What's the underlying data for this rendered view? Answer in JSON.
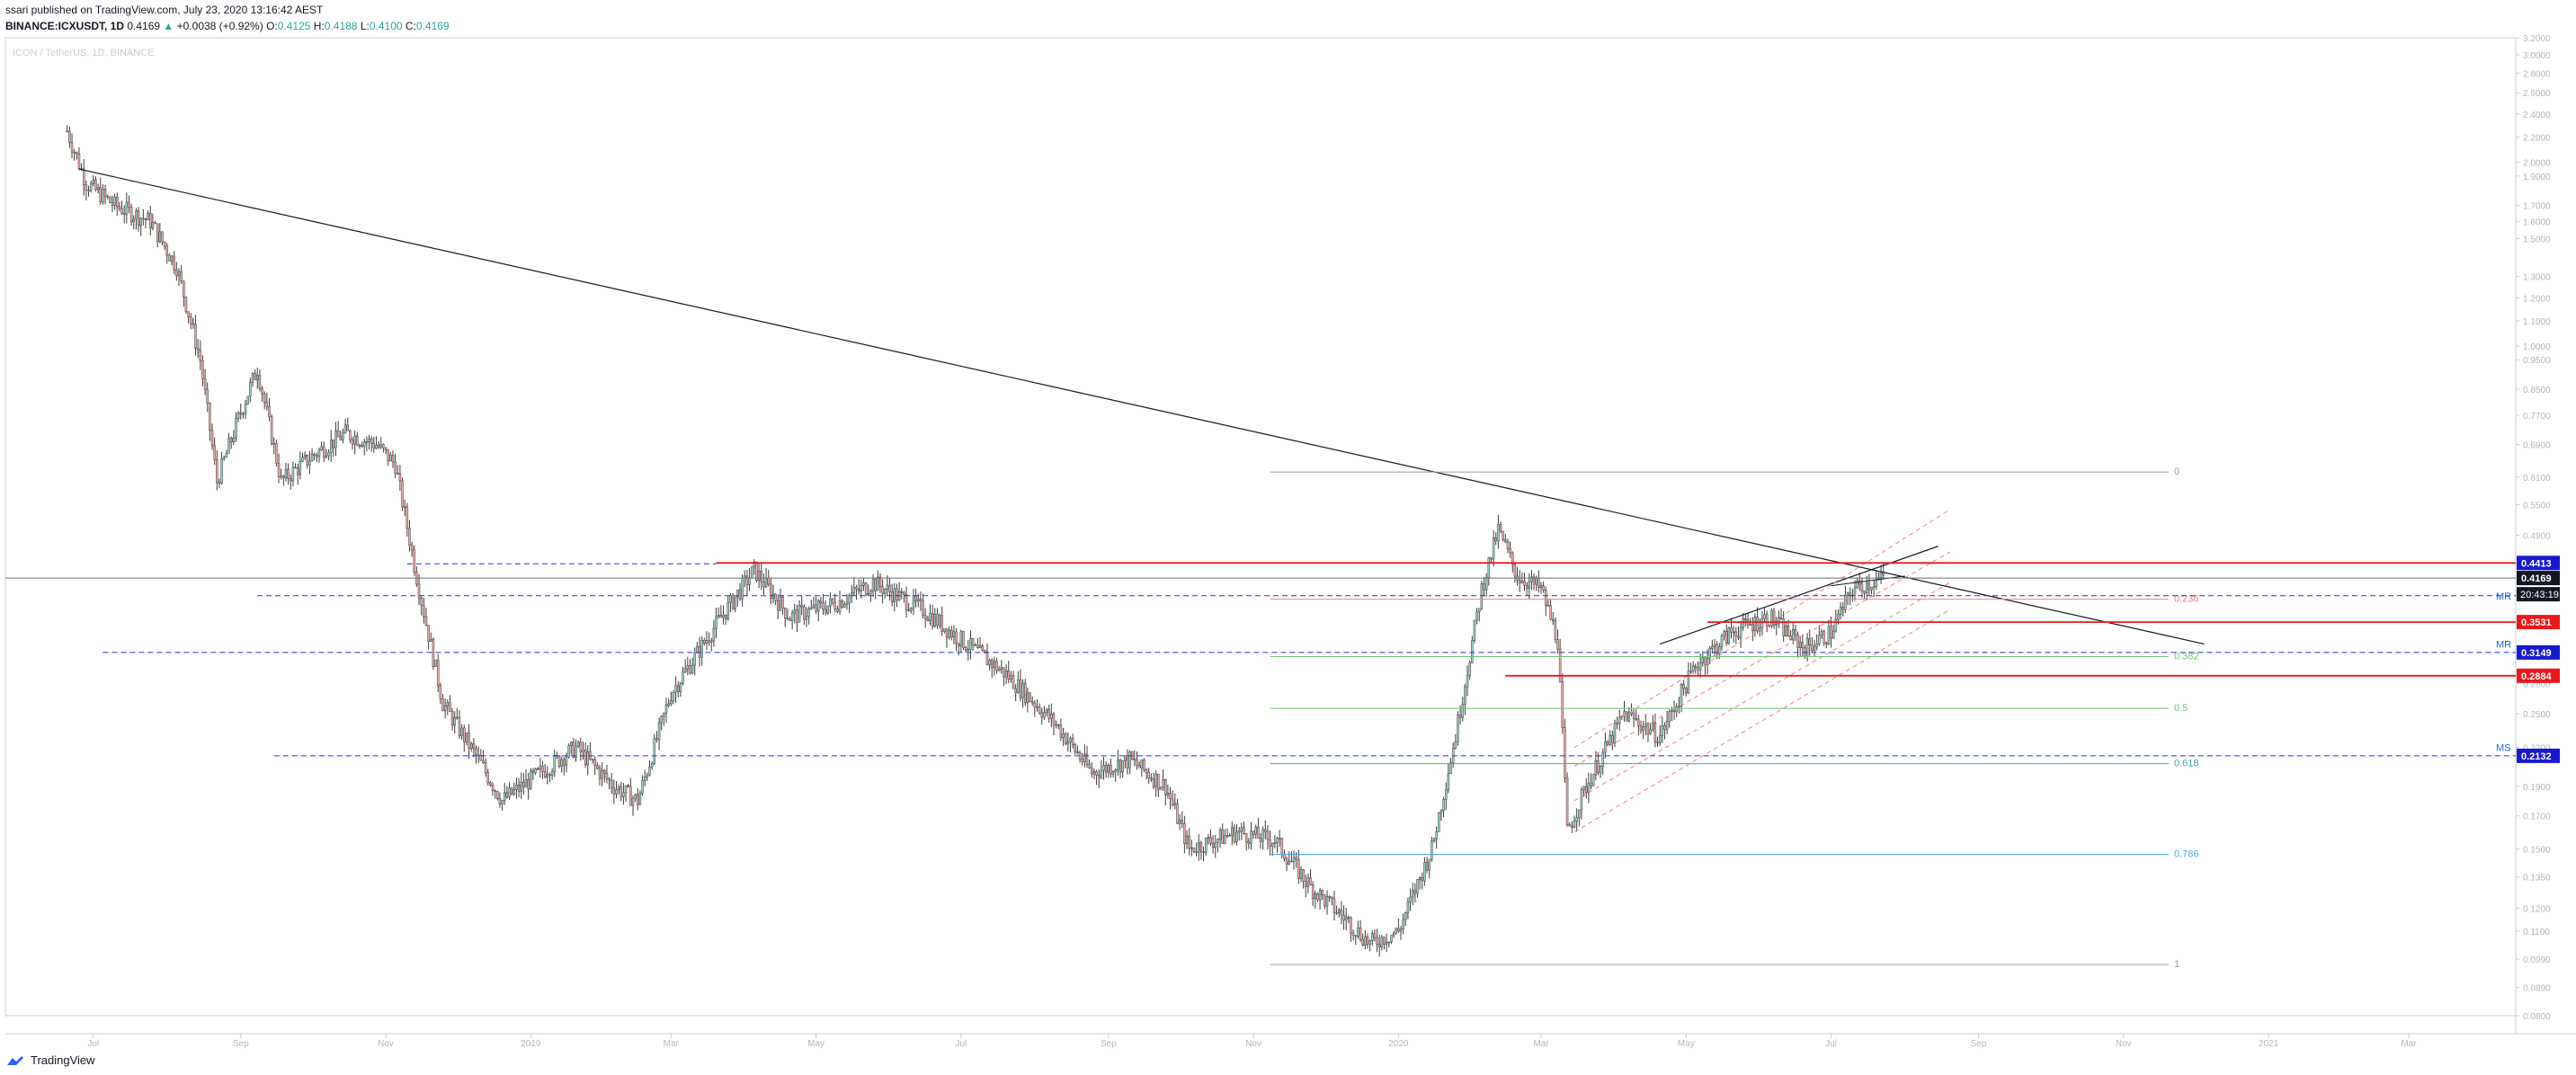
{
  "header": {
    "publisher_line": "ssari published on TradingView.com, July 23, 2020 13:16:42 AEST",
    "symbol": "BINANCE:ICXUSDT, 1D",
    "price": "0.4169",
    "arrow": "▲",
    "change": "+0.0038 (+0.92%)",
    "o_label": "O:",
    "o_value": "0.4125",
    "h_label": "H:",
    "h_value": "0.4188",
    "l_label": "L:",
    "l_value": "0.4100",
    "c_label": "C:",
    "c_value": "0.4169"
  },
  "watermark": "ICON / TetherUS, 1D, BINANCE",
  "footer": {
    "brand": "TradingView"
  },
  "colors": {
    "up": "#26a69a",
    "down": "#ef5350",
    "candle": "#3c3c3c",
    "red_level": "#e8191c",
    "blue_dash": "#2b2bcc",
    "fib_gray": "#9e9e9e",
    "fib_green": "#6fc26f",
    "fib_teal": "#3fa7a0",
    "fib_blue": "#4fa8e0",
    "fib_red": "#f08080",
    "tag_red": "#e8191c",
    "tag_blue": "#1919cc",
    "tag_black": "#131722"
  },
  "chart_data": {
    "type": "candlestick",
    "title": "ICON / TetherUS, 1D, BINANCE",
    "scale": "log",
    "ylim": [
      0.08,
      3.2
    ],
    "y_ticks": [
      "3.2000",
      "3.0000",
      "2.8000",
      "2.6000",
      "2.4000",
      "2.2000",
      "2.0000",
      "1.9000",
      "1.7000",
      "1.6000",
      "1.5000",
      "1.3000",
      "1.2000",
      "1.1000",
      "1.0000",
      "0.9500",
      "0.8500",
      "0.7700",
      "0.6900",
      "0.6100",
      "0.5500",
      "0.4900",
      "0.4400",
      "0.3900",
      "0.3500",
      "0.3100",
      "0.2800",
      "0.2500",
      "0.2200",
      "0.1900",
      "0.1700",
      "0.1500",
      "0.1350",
      "0.1200",
      "0.1100",
      "0.0990",
      "0.0890",
      "0.0800"
    ],
    "x_ticks": [
      "Jul",
      "Sep",
      "Nov",
      "2019",
      "Mar",
      "May",
      "Jul",
      "Sep",
      "Nov",
      "2020",
      "Mar",
      "May",
      "Jul",
      "Sep",
      "Nov",
      "2021",
      "Mar"
    ],
    "price_path": [
      [
        "2018-06-20",
        2.25
      ],
      [
        "2018-06-28",
        1.85
      ],
      [
        "2018-07-10",
        1.7
      ],
      [
        "2018-07-25",
        1.6
      ],
      [
        "2018-08-05",
        1.35
      ],
      [
        "2018-08-15",
        0.95
      ],
      [
        "2018-08-22",
        0.6
      ],
      [
        "2018-09-01",
        0.78
      ],
      [
        "2018-09-08",
        0.92
      ],
      [
        "2018-09-18",
        0.6
      ],
      [
        "2018-10-01",
        0.66
      ],
      [
        "2018-10-15",
        0.72
      ],
      [
        "2018-10-28",
        0.69
      ],
      [
        "2018-11-05",
        0.64
      ],
      [
        "2018-11-15",
        0.4
      ],
      [
        "2018-11-25",
        0.26
      ],
      [
        "2018-12-10",
        0.21
      ],
      [
        "2018-12-20",
        0.18
      ],
      [
        "2019-01-05",
        0.2
      ],
      [
        "2019-01-20",
        0.22
      ],
      [
        "2019-02-05",
        0.19
      ],
      [
        "2019-02-15",
        0.18
      ],
      [
        "2019-03-01",
        0.27
      ],
      [
        "2019-03-20",
        0.35
      ],
      [
        "2019-04-05",
        0.43
      ],
      [
        "2019-04-20",
        0.36
      ],
      [
        "2019-05-10",
        0.38
      ],
      [
        "2019-05-25",
        0.41
      ],
      [
        "2019-06-15",
        0.37
      ],
      [
        "2019-07-01",
        0.33
      ],
      [
        "2019-07-20",
        0.29
      ],
      [
        "2019-08-10",
        0.24
      ],
      [
        "2019-08-25",
        0.2
      ],
      [
        "2019-09-10",
        0.21
      ],
      [
        "2019-09-25",
        0.19
      ],
      [
        "2019-10-05",
        0.15
      ],
      [
        "2019-10-25",
        0.16
      ],
      [
        "2019-11-10",
        0.155
      ],
      [
        "2019-11-25",
        0.13
      ],
      [
        "2019-12-10",
        0.115
      ],
      [
        "2019-12-20",
        0.105
      ],
      [
        "2020-01-01",
        0.11
      ],
      [
        "2020-01-15",
        0.15
      ],
      [
        "2020-01-25",
        0.23
      ],
      [
        "2020-02-05",
        0.4
      ],
      [
        "2020-02-12",
        0.5
      ],
      [
        "2020-02-20",
        0.42
      ],
      [
        "2020-03-01",
        0.4
      ],
      [
        "2020-03-08",
        0.33
      ],
      [
        "2020-03-12",
        0.16
      ],
      [
        "2020-03-20",
        0.19
      ],
      [
        "2020-04-05",
        0.25
      ],
      [
        "2020-04-20",
        0.23
      ],
      [
        "2020-05-05",
        0.3
      ],
      [
        "2020-05-20",
        0.34
      ],
      [
        "2020-06-05",
        0.36
      ],
      [
        "2020-06-20",
        0.32
      ],
      [
        "2020-07-01",
        0.34
      ],
      [
        "2020-07-10",
        0.4
      ],
      [
        "2020-07-23",
        0.4169
      ]
    ],
    "horizontal_levels": [
      {
        "value": 0.4413,
        "style": "solid",
        "color": "red",
        "tag": "0.4413",
        "tag_color": "blue"
      },
      {
        "value": 0.4169,
        "style": "solid",
        "color": "gray",
        "tag": "0.4169",
        "tag_color": "black"
      },
      {
        "value": 0.3531,
        "style": "solid",
        "color": "red",
        "tag": "0.3531",
        "tag_color": "red"
      },
      {
        "value": 0.3149,
        "style": "dashed",
        "color": "blue",
        "tag": "0.3149",
        "tag_color": "blue"
      },
      {
        "value": 0.2884,
        "style": "solid",
        "color": "red",
        "tag": "0.2884",
        "tag_color": "red"
      },
      {
        "value": 0.2132,
        "style": "dashed",
        "color": "blue",
        "tag": "0.2132",
        "tag_color": "blue"
      }
    ],
    "level_labels": [
      {
        "text": "MR",
        "value": 0.39
      },
      {
        "text": "MR",
        "value": 0.325
      },
      {
        "text": "MS",
        "value": 0.22
      }
    ],
    "countdown": "20:43:19",
    "fib_retracement": [
      {
        "ratio": "0",
        "value": 0.622
      },
      {
        "ratio": "0.236",
        "value": 0.385
      },
      {
        "ratio": "0.382",
        "value": 0.31
      },
      {
        "ratio": "0.5",
        "value": 0.255
      },
      {
        "ratio": "0.618",
        "value": 0.207
      },
      {
        "ratio": "0.786",
        "value": 0.147
      },
      {
        "ratio": "1",
        "value": 0.097
      }
    ]
  }
}
